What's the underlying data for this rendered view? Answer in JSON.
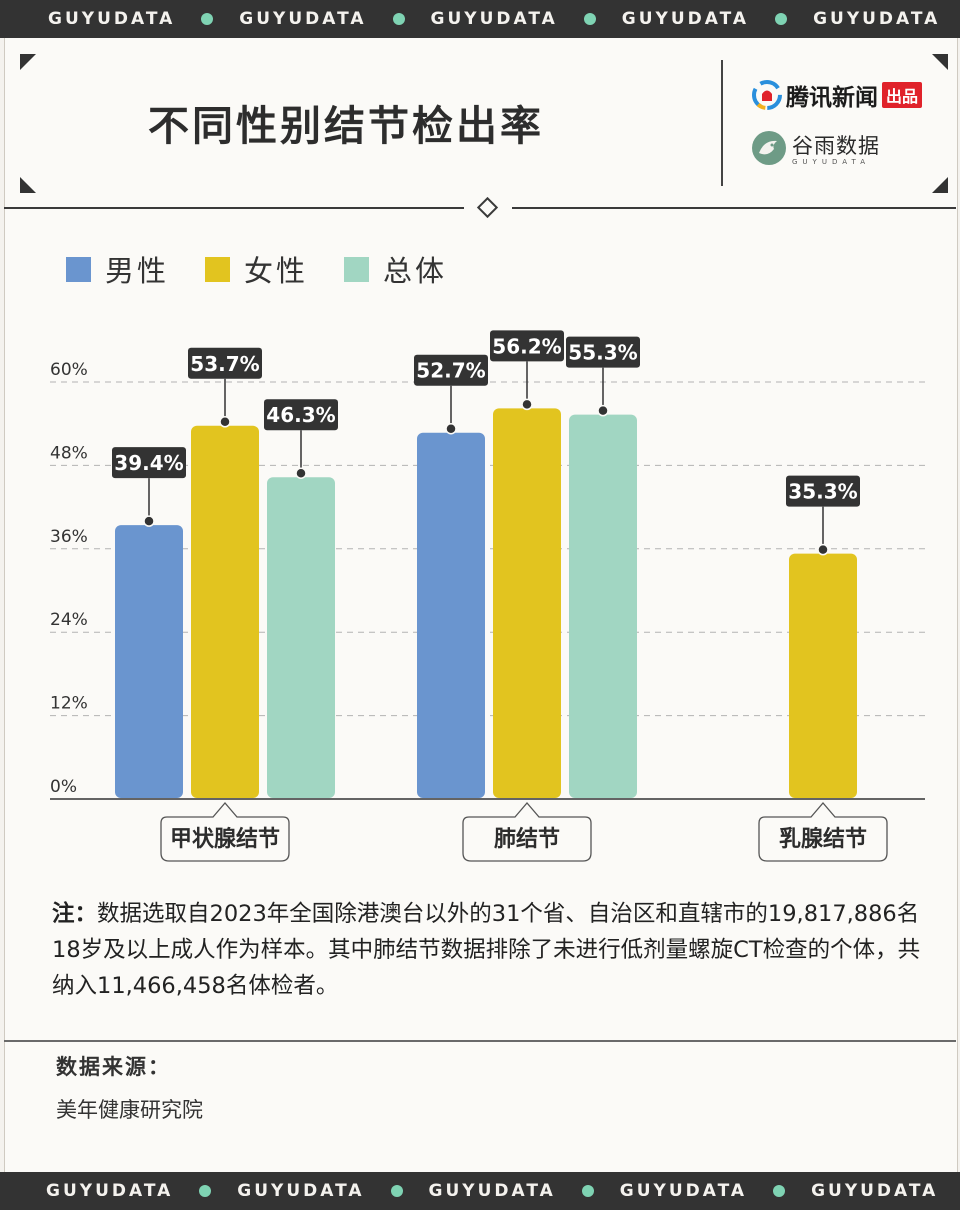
{
  "band": {
    "text": "GUYUDATA",
    "repeat_count": 5,
    "dot_color": "#7fd3b3",
    "background": "#333333"
  },
  "header": {
    "title": "不同性别结节检出率",
    "logo_primary": {
      "text": "腾讯新闻",
      "tag": "出品"
    },
    "logo_secondary": {
      "text": "谷雨数据",
      "subtext": "GUYUDATA"
    }
  },
  "colors": {
    "male": "#6a95cf",
    "female": "#e2c41f",
    "overall": "#a1d6c2",
    "label_bg": "#333333",
    "label_text": "#ffffff"
  },
  "chart_data": {
    "type": "bar",
    "categories": [
      "甲状腺结节",
      "肺结节",
      "乳腺结节"
    ],
    "series": [
      {
        "name": "男性",
        "color": "#6a95cf",
        "values": [
          39.4,
          52.7,
          null
        ]
      },
      {
        "name": "女性",
        "color": "#e2c41f",
        "values": [
          53.7,
          56.2,
          35.3
        ]
      },
      {
        "name": "总体",
        "color": "#a1d6c2",
        "values": [
          46.3,
          55.3,
          null
        ]
      }
    ],
    "data_labels": [
      [
        "39.4%",
        "52.7%",
        null
      ],
      [
        "53.7%",
        "56.2%",
        "35.3%"
      ],
      [
        "46.3%",
        "55.3%",
        null
      ]
    ],
    "ylim": [
      0,
      60
    ],
    "yticks": [
      0,
      12,
      24,
      36,
      48,
      60
    ],
    "ytick_labels": [
      "0%",
      "12%",
      "24%",
      "36%",
      "48%",
      "60%"
    ],
    "grid": "dashed horizontal",
    "legend": "top-left"
  },
  "notes": {
    "label": "注：",
    "text": "数据选取自2023年全国除港澳台以外的31个省、自治区和直辖市的19,817,886名18岁及以上成人作为样本。其中肺结节数据排除了未进行低剂量螺旋CT检查的个体，共纳入11,466,458名体检者。"
  },
  "source": {
    "label": "数据来源：",
    "name": "美年健康研究院"
  }
}
